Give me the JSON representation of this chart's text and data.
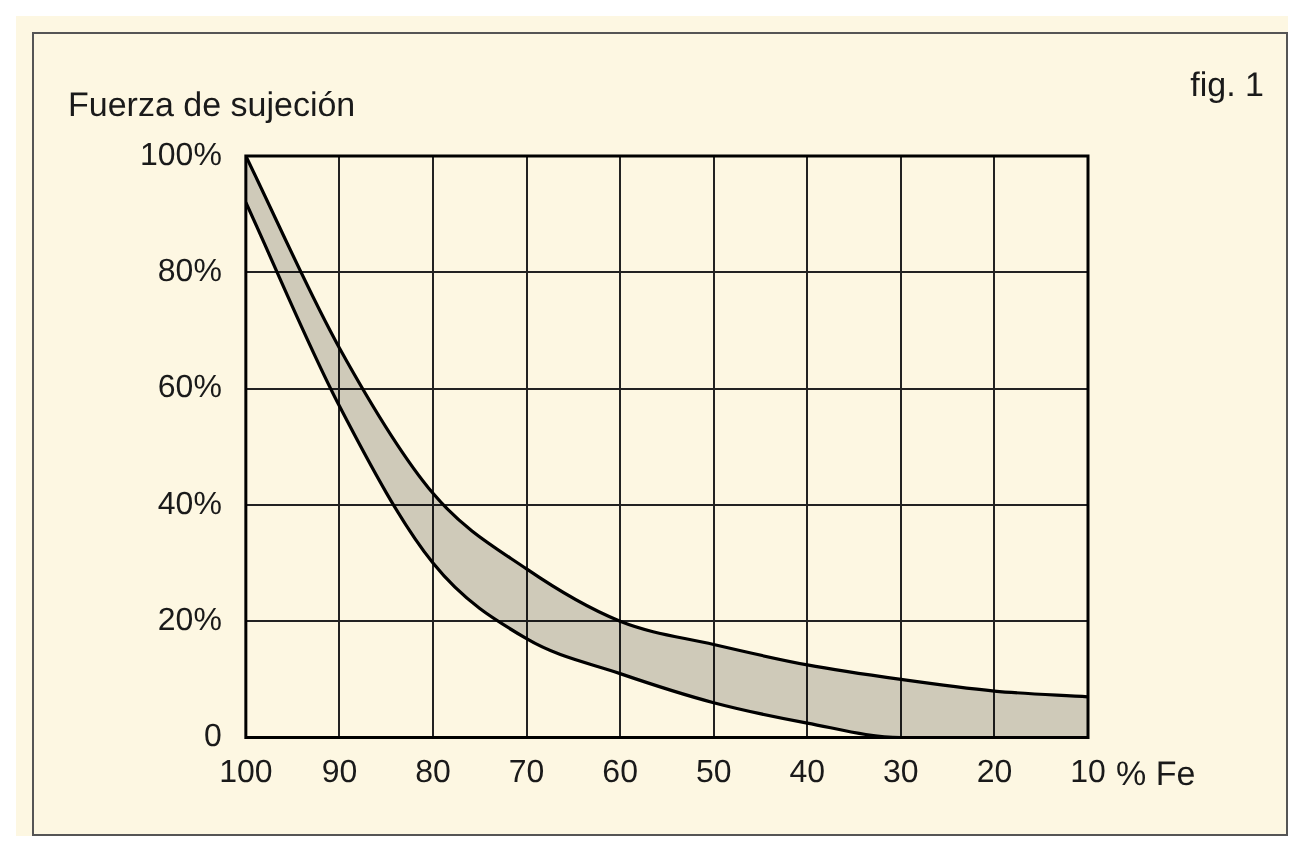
{
  "chart_data": {
    "type": "line",
    "title": "Fuerza de sujeción",
    "xlabel": "% Fe",
    "annotations": [
      "fig. 1"
    ],
    "x": [
      100,
      90,
      80,
      70,
      60,
      50,
      40,
      30,
      20,
      10
    ],
    "series": [
      {
        "color": "#000000",
        "values": [
          100,
          67,
          42,
          29,
          20,
          16,
          12.5,
          10,
          8,
          7
        ],
        "upper": [
          100,
          67,
          42,
          29,
          20,
          16,
          12.5,
          10,
          8,
          7
        ],
        "lower": [
          92,
          57,
          30,
          17,
          11,
          6,
          2.5,
          0,
          0,
          0
        ]
      },
      {
        "color": "#000000",
        "values": [
          92,
          57,
          30,
          17,
          11,
          6,
          2.5,
          0,
          0,
          0
        ]
      }
    ],
    "xlim": [
      100,
      10
    ],
    "xticks": [
      100,
      90,
      80,
      70,
      60,
      50,
      40,
      30,
      20,
      10
    ],
    "ylim": [
      0,
      100
    ],
    "yticks": [
      {
        "value": 0,
        "label": "0"
      },
      {
        "value": 20,
        "label": "20%"
      },
      {
        "value": 40,
        "label": "40%"
      },
      {
        "value": 60,
        "label": "60%"
      },
      {
        "value": 80,
        "label": "80%"
      },
      {
        "value": 100,
        "label": "100%"
      }
    ],
    "grid": true,
    "legend": false,
    "marker": "none",
    "line_style": "solid"
  }
}
